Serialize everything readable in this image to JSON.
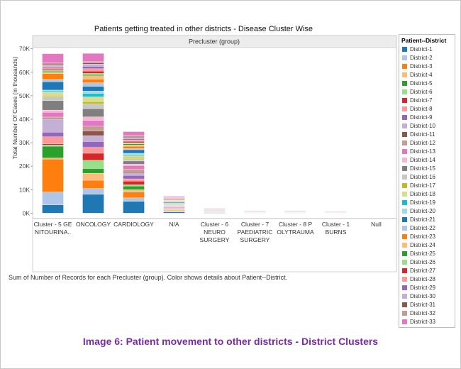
{
  "chart_data": {
    "type": "bar",
    "stacked": true,
    "title": "Patients getting treated in other districts - Disease Cluster Wise",
    "header": "Precluster (group)",
    "ylabel": "Total Number Of Cases (in thousands)",
    "ylim": [
      -2,
      70.5
    ],
    "yticks": [
      "0K",
      "10K",
      "20K",
      "30K",
      "40K",
      "50K",
      "60K",
      "70K"
    ],
    "ytick_values": [
      0,
      10,
      20,
      30,
      40,
      50,
      60,
      70
    ],
    "categories": [
      [
        "Cluster - 5 GE",
        "NITOURINA.."
      ],
      [
        "ONCOLOGY"
      ],
      [
        "CARDIOLOGY"
      ],
      [
        "N/A"
      ],
      [
        "Cluster - 6",
        "NEURO",
        "SURGERY"
      ],
      [
        "Cluster - 7",
        "PAEDIATRIC",
        "SURGERY"
      ],
      [
        "Cluster - 8 P",
        "OLYTRAUMA"
      ],
      [
        "Cluster - 1",
        "BURNS"
      ],
      [
        "Null"
      ]
    ],
    "legend_title": "Patient--District",
    "series": [
      {
        "name": "District-1",
        "color": "#1f77b4",
        "values": [
          3.5,
          8.0,
          5.0,
          0.5,
          0.15,
          0.05,
          0.05,
          0.04,
          0
        ]
      },
      {
        "name": "District-2",
        "color": "#aec7e8",
        "values": [
          5.5,
          2.5,
          1.5,
          0.2,
          0.1,
          0.02,
          0.02,
          0.02,
          0
        ]
      },
      {
        "name": "District-3",
        "color": "#ff7f0e",
        "values": [
          14.0,
          3.5,
          2.5,
          0.3,
          0.1,
          0.03,
          0.03,
          0.03,
          0
        ]
      },
      {
        "name": "District-4",
        "color": "#ffbb78",
        "values": [
          0.5,
          3.0,
          1.0,
          0.2,
          0.05,
          0.02,
          0.02,
          0.01,
          0
        ]
      },
      {
        "name": "District-5",
        "color": "#2ca02c",
        "values": [
          5.0,
          2.0,
          1.5,
          0.2,
          0.05,
          0.02,
          0.02,
          0.01,
          0
        ]
      },
      {
        "name": "District-6",
        "color": "#98df8a",
        "values": [
          0.5,
          3.5,
          0.6,
          0.2,
          0.05,
          0.02,
          0.02,
          0.01,
          0
        ]
      },
      {
        "name": "District-7",
        "color": "#d62728",
        "values": [
          0.5,
          3.0,
          1.5,
          0.2,
          0.05,
          0.02,
          0.02,
          0.01,
          0
        ]
      },
      {
        "name": "District-8",
        "color": "#ff9896",
        "values": [
          3.0,
          2.5,
          1.0,
          0.2,
          0.05,
          0.02,
          0.02,
          0.01,
          0
        ]
      },
      {
        "name": "District-9",
        "color": "#9467bd",
        "values": [
          2.0,
          2.5,
          1.5,
          0.2,
          0.05,
          0.02,
          0.02,
          0.01,
          0
        ]
      },
      {
        "name": "District-10",
        "color": "#c5b0d5",
        "values": [
          5.5,
          2.5,
          1.0,
          0.2,
          0.05,
          0.02,
          0.02,
          0.01,
          0
        ]
      },
      {
        "name": "District-11",
        "color": "#8c564b",
        "values": [
          0.4,
          2.0,
          0.5,
          0.2,
          0.05,
          0.02,
          0.02,
          0.01,
          0
        ]
      },
      {
        "name": "District-12",
        "color": "#c49c94",
        "values": [
          0.5,
          2.0,
          1.2,
          0.2,
          0.05,
          0.02,
          0.02,
          0.01,
          0
        ]
      },
      {
        "name": "District-13",
        "color": "#e377c2",
        "values": [
          2.0,
          2.5,
          1.5,
          0.2,
          0.05,
          0.02,
          0.02,
          0.01,
          0
        ]
      },
      {
        "name": "District-14",
        "color": "#f7b6d2",
        "values": [
          1.0,
          1.5,
          0.6,
          0.2,
          0.05,
          0.02,
          0.02,
          0.01,
          0
        ]
      },
      {
        "name": "District-15",
        "color": "#7f7f7f",
        "values": [
          4.0,
          3.5,
          1.3,
          0.2,
          0.05,
          0.02,
          0.02,
          0.01,
          0
        ]
      },
      {
        "name": "District-16",
        "color": "#c7c7c7",
        "values": [
          1.5,
          2.0,
          1.0,
          0.2,
          0.05,
          0.02,
          0.02,
          0.01,
          0
        ]
      },
      {
        "name": "District-17",
        "color": "#bcbd22",
        "values": [
          0.5,
          1.0,
          0.6,
          0.2,
          0.05,
          0.02,
          0.02,
          0.01,
          0
        ]
      },
      {
        "name": "District-18",
        "color": "#dbdb8d",
        "values": [
          1.5,
          2.0,
          0.7,
          0.2,
          0.05,
          0.02,
          0.02,
          0.01,
          0
        ]
      },
      {
        "name": "District-19",
        "color": "#17becf",
        "values": [
          0.5,
          1.5,
          0.5,
          0.2,
          0.05,
          0.02,
          0.02,
          0.01,
          0
        ]
      },
      {
        "name": "District-20",
        "color": "#9edae5",
        "values": [
          0.5,
          1.0,
          0.5,
          0.2,
          0.05,
          0.02,
          0.02,
          0.01,
          0
        ]
      },
      {
        "name": "District-21",
        "color": "#1f77b4",
        "values": [
          3.5,
          2.0,
          1.5,
          0.3,
          0.1,
          0.02,
          0.02,
          0.01,
          0
        ]
      },
      {
        "name": "District-22",
        "color": "#aec7e8",
        "values": [
          1.0,
          1.5,
          0.5,
          0.2,
          0.05,
          0.02,
          0.02,
          0.01,
          0
        ]
      },
      {
        "name": "District-23",
        "color": "#ff7f0e",
        "values": [
          2.5,
          1.5,
          1.0,
          0.2,
          0.05,
          0.02,
          0.02,
          0.01,
          0
        ]
      },
      {
        "name": "District-24",
        "color": "#ffbb78",
        "values": [
          0.5,
          1.5,
          0.5,
          0.2,
          0.05,
          0.02,
          0.02,
          0.01,
          0
        ]
      },
      {
        "name": "District-25",
        "color": "#2ca02c",
        "values": [
          0.5,
          0.5,
          0.5,
          0.2,
          0.05,
          0.02,
          0.02,
          0.01,
          0
        ]
      },
      {
        "name": "District-26",
        "color": "#98df8a",
        "values": [
          0.5,
          0.5,
          0.5,
          0.2,
          0.05,
          0.02,
          0.02,
          0.01,
          0
        ]
      },
      {
        "name": "District-27",
        "color": "#d62728",
        "values": [
          0.5,
          1.0,
          0.6,
          0.2,
          0.05,
          0.02,
          0.02,
          0.01,
          0
        ]
      },
      {
        "name": "District-28",
        "color": "#ff9896",
        "values": [
          0.5,
          1.0,
          0.6,
          0.2,
          0.05,
          0.02,
          0.02,
          0.01,
          0
        ]
      },
      {
        "name": "District-29",
        "color": "#9467bd",
        "values": [
          0.5,
          1.0,
          0.5,
          0.2,
          0.05,
          0.02,
          0.02,
          0.01,
          0
        ]
      },
      {
        "name": "District-30",
        "color": "#c5b0d5",
        "values": [
          0.5,
          1.0,
          0.5,
          0.2,
          0.05,
          0.02,
          0.02,
          0.01,
          0
        ]
      },
      {
        "name": "District-31",
        "color": "#8c564b",
        "values": [
          0.5,
          0.5,
          0.5,
          0.2,
          0.05,
          0.02,
          0.02,
          0.01,
          0
        ]
      },
      {
        "name": "District-32",
        "color": "#c49c94",
        "values": [
          0.5,
          0.5,
          0.5,
          0.2,
          0.05,
          0.02,
          0.02,
          0.01,
          0
        ]
      },
      {
        "name": "District-33",
        "color": "#e377c2",
        "values": [
          4.0,
          3.5,
          1.5,
          0.3,
          0.1,
          0.02,
          0.02,
          0.01,
          0
        ]
      }
    ]
  },
  "footnote": "Sum of Number of Records for each Precluster (group).  Color shows details about Patient--District.",
  "caption": "Image 6: Patient movement to other districts - District Clusters"
}
